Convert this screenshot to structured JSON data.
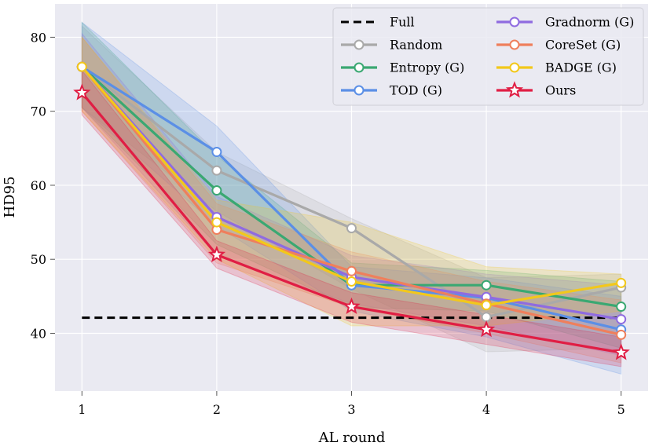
{
  "chart_data": {
    "type": "line",
    "title": "",
    "xlabel": "AL round",
    "ylabel": "HD95",
    "x": [
      1,
      2,
      3,
      4,
      5
    ],
    "xticks": [
      "1",
      "2",
      "3",
      "4",
      "5"
    ],
    "yticks": [
      "40",
      "50",
      "60",
      "70",
      "80"
    ],
    "ytick_values": [
      40,
      50,
      60,
      70,
      80
    ],
    "xlim": [
      0.8,
      5.2
    ],
    "ylim": [
      32.2,
      84.5
    ],
    "grid": true,
    "legend_position": "top-right",
    "full_baseline": {
      "name": "Full",
      "value": 42.1,
      "color": "#000000"
    },
    "series": [
      {
        "name": "Random",
        "color": "#a9a9a9",
        "marker": "circle",
        "values": [
          76.0,
          62.0,
          54.2,
          42.2,
          46.2
        ],
        "lower": [
          70.5,
          56.5,
          46.0,
          37.5,
          38.0
        ],
        "upper": [
          81.5,
          64.5,
          55.5,
          47.5,
          48.0
        ]
      },
      {
        "name": "Entropy (G)",
        "color": "#3aa872",
        "marker": "circle",
        "values": [
          76.0,
          59.3,
          46.5,
          46.5,
          43.6
        ],
        "lower": [
          70.5,
          52.0,
          43.5,
          43.0,
          38.0
        ],
        "upper": [
          82.0,
          64.0,
          49.5,
          48.5,
          47.0
        ]
      },
      {
        "name": "TOD (G)",
        "color": "#5b8fe6",
        "marker": "circle",
        "values": [
          76.0,
          64.5,
          46.5,
          44.8,
          40.5
        ],
        "lower": [
          70.5,
          54.5,
          43.0,
          39.5,
          34.5
        ],
        "upper": [
          82.0,
          68.0,
          49.0,
          47.5,
          45.0
        ]
      },
      {
        "name": "Gradnorm (G)",
        "color": "#8f6be0",
        "marker": "circle",
        "values": [
          76.0,
          55.7,
          47.6,
          44.9,
          41.9
        ],
        "lower": [
          70.5,
          50.5,
          44.0,
          41.0,
          37.0
        ],
        "upper": [
          80.5,
          58.5,
          50.5,
          48.0,
          46.5
        ]
      },
      {
        "name": "CoreSet (G)",
        "color": "#ef7f5c",
        "marker": "circle",
        "values": [
          76.0,
          54.0,
          48.4,
          44.0,
          39.8
        ],
        "lower": [
          70.0,
          49.5,
          43.5,
          40.0,
          36.0
        ],
        "upper": [
          80.0,
          57.5,
          51.0,
          47.0,
          44.5
        ]
      },
      {
        "name": "BADGE (G)",
        "color": "#f2c81b",
        "marker": "circle",
        "values": [
          76.0,
          55.0,
          47.0,
          43.8,
          46.8
        ],
        "lower": [
          70.0,
          50.0,
          41.0,
          41.0,
          43.0
        ],
        "upper": [
          80.0,
          58.0,
          55.0,
          49.0,
          48.0
        ]
      },
      {
        "name": "Ours",
        "color": "#e01e44",
        "marker": "star",
        "values": [
          72.5,
          50.6,
          43.6,
          40.5,
          37.4
        ],
        "lower": [
          69.5,
          48.8,
          41.5,
          38.5,
          35.5
        ],
        "upper": [
          75.5,
          52.5,
          45.5,
          42.5,
          39.5
        ]
      }
    ]
  }
}
